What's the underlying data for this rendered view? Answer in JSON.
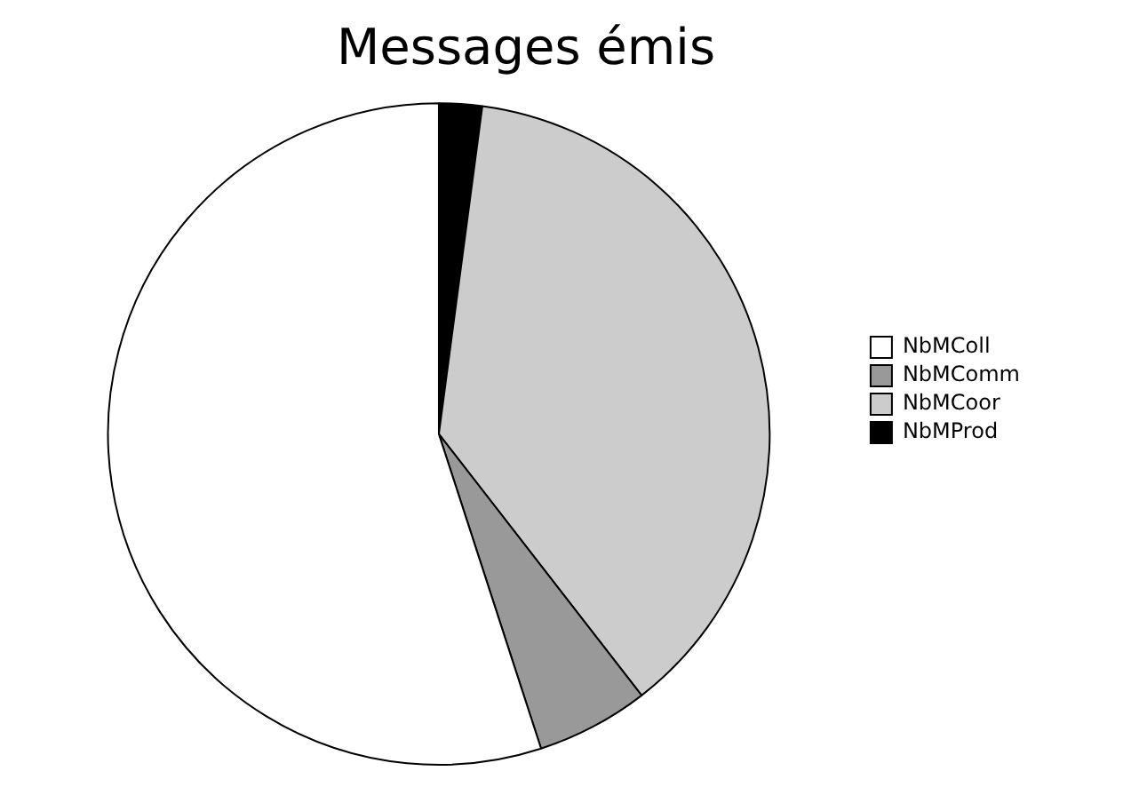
{
  "chart_data": {
    "type": "pie",
    "title": "Messages émis",
    "categories": [
      "NbMColl",
      "NbMComm",
      "NbMCoor",
      "NbMProd"
    ],
    "values": [
      55,
      5.5,
      37.4,
      2.1
    ],
    "colors": [
      "#ffffff",
      "#999999",
      "#cccccc",
      "#000000"
    ],
    "legend": "right"
  }
}
